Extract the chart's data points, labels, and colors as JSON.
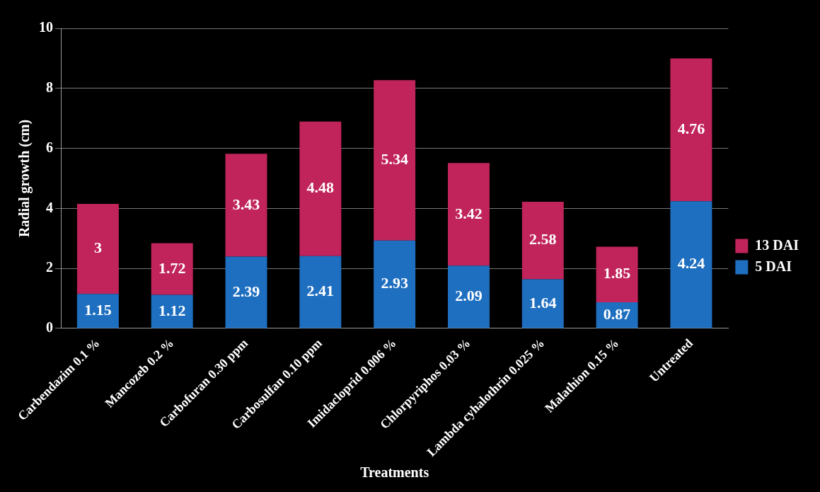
{
  "chart_data": {
    "type": "bar",
    "stacked": true,
    "xlabel": "Treatments",
    "ylabel": "Radial growth (cm)",
    "categories": [
      "Carbendazim 0.1 %",
      "Mancozeb 0.2 %",
      "Carbofuran 0.30 ppm",
      "Carbosulfan 0.10 ppm",
      "Imidacloprid 0.006 %",
      "Chlorpyriphos 0.03 %",
      "Lambda cyhalothrin 0.025 %",
      "Malathion 0.15 %",
      "Untreated"
    ],
    "series": [
      {
        "name": "5 DAI",
        "color": "#1f6fc0",
        "values": [
          1.15,
          1.12,
          2.39,
          2.41,
          2.93,
          2.09,
          1.64,
          0.87,
          4.24
        ]
      },
      {
        "name": "13 DAI",
        "color": "#c0245a",
        "values": [
          3,
          1.72,
          3.43,
          4.48,
          5.34,
          3.42,
          2.58,
          1.85,
          4.76
        ]
      }
    ],
    "ylim": [
      0,
      10
    ],
    "yticks": [
      0,
      2,
      4,
      6,
      8,
      10
    ],
    "grid": "y",
    "legend": "right",
    "data_labels": true
  }
}
